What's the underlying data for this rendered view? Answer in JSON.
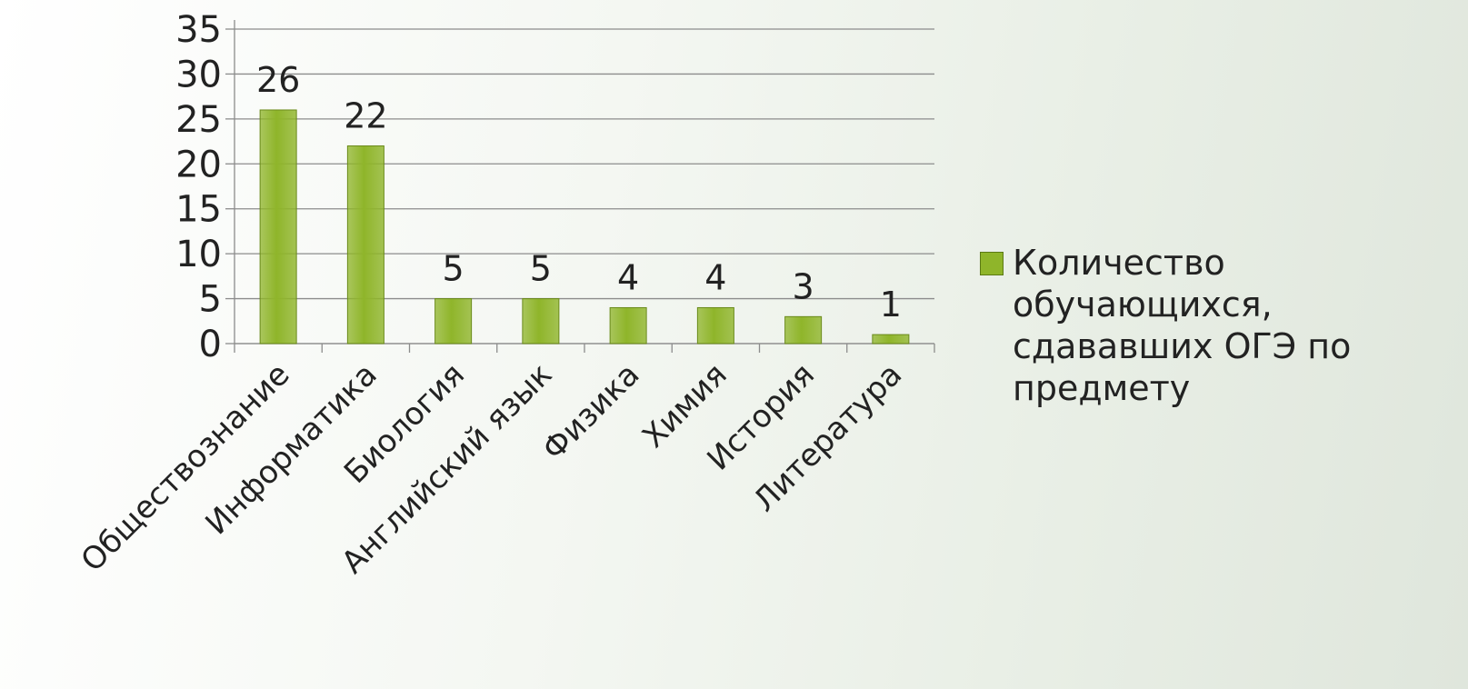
{
  "chart_data": {
    "type": "bar",
    "categories": [
      "Обществознание",
      "Информатика",
      "Биология",
      "Английский язык",
      "Физика",
      "Химия",
      "История",
      "Литература"
    ],
    "series": [
      {
        "name": "Количество обучающихся, сдававших ОГЭ по предмету",
        "color": "#8fb52a",
        "values": [
          26,
          22,
          5,
          5,
          4,
          4,
          3,
          1
        ]
      }
    ],
    "ylim": [
      0,
      35
    ],
    "yticks": [
      0,
      5,
      10,
      15,
      20,
      25,
      30,
      35
    ],
    "grid": true,
    "legend": "right"
  }
}
